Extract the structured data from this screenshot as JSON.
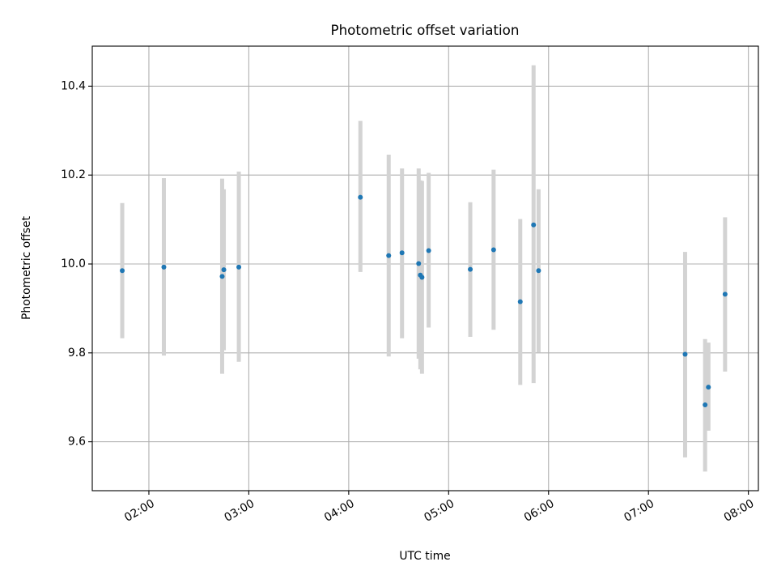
{
  "chart_data": {
    "type": "scatter",
    "title": "Photometric offset variation",
    "xlabel": "UTC time",
    "ylabel": "Photometric offset",
    "xlim": [
      "01:26",
      "08:06"
    ],
    "ylim": [
      9.49,
      10.49
    ],
    "grid": true,
    "x_ticks": [
      "02:00",
      "03:00",
      "04:00",
      "05:00",
      "06:00",
      "07:00",
      "08:00"
    ],
    "y_ticks": [
      9.6,
      9.8,
      10.0,
      10.2,
      10.4
    ],
    "y_tick_labels": [
      "9.6",
      "9.8",
      "10.0",
      "10.2",
      "10.4"
    ],
    "colors": {
      "marker": "#1f77b4",
      "error_bar": "#d3d3d3",
      "grid": "#b0b0b0"
    },
    "points": [
      {
        "x": "01:44",
        "y": 9.985,
        "ylow": 9.833,
        "yhigh": 10.137
      },
      {
        "x": "02:09",
        "y": 9.993,
        "ylow": 9.794,
        "yhigh": 10.193
      },
      {
        "x": "02:44",
        "y": 9.972,
        "ylow": 9.753,
        "yhigh": 10.192
      },
      {
        "x": "02:45",
        "y": 9.987,
        "ylow": 9.806,
        "yhigh": 10.168
      },
      {
        "x": "02:54",
        "y": 9.993,
        "ylow": 9.78,
        "yhigh": 10.208
      },
      {
        "x": "04:07",
        "y": 10.15,
        "ylow": 9.982,
        "yhigh": 10.322
      },
      {
        "x": "04:24",
        "y": 10.019,
        "ylow": 9.792,
        "yhigh": 10.246
      },
      {
        "x": "04:32",
        "y": 10.025,
        "ylow": 9.833,
        "yhigh": 10.215
      },
      {
        "x": "04:42",
        "y": 10.001,
        "ylow": 9.787,
        "yhigh": 10.215
      },
      {
        "x": "04:43",
        "y": 9.975,
        "ylow": 9.763,
        "yhigh": 10.188
      },
      {
        "x": "04:44",
        "y": 9.97,
        "ylow": 9.753,
        "yhigh": 10.187
      },
      {
        "x": "04:48",
        "y": 10.03,
        "ylow": 9.857,
        "yhigh": 10.205
      },
      {
        "x": "05:13",
        "y": 9.988,
        "ylow": 9.836,
        "yhigh": 10.139
      },
      {
        "x": "05:27",
        "y": 10.032,
        "ylow": 9.852,
        "yhigh": 10.212
      },
      {
        "x": "05:43",
        "y": 9.915,
        "ylow": 9.728,
        "yhigh": 10.101
      },
      {
        "x": "05:51",
        "y": 10.088,
        "ylow": 9.732,
        "yhigh": 10.447
      },
      {
        "x": "05:54",
        "y": 9.985,
        "ylow": 9.801,
        "yhigh": 10.168
      },
      {
        "x": "07:22",
        "y": 9.797,
        "ylow": 9.565,
        "yhigh": 10.027
      },
      {
        "x": "07:34",
        "y": 9.683,
        "ylow": 9.533,
        "yhigh": 9.831
      },
      {
        "x": "07:36",
        "y": 9.723,
        "ylow": 9.625,
        "yhigh": 9.823
      },
      {
        "x": "07:46",
        "y": 9.932,
        "ylow": 9.758,
        "yhigh": 10.105
      }
    ]
  }
}
